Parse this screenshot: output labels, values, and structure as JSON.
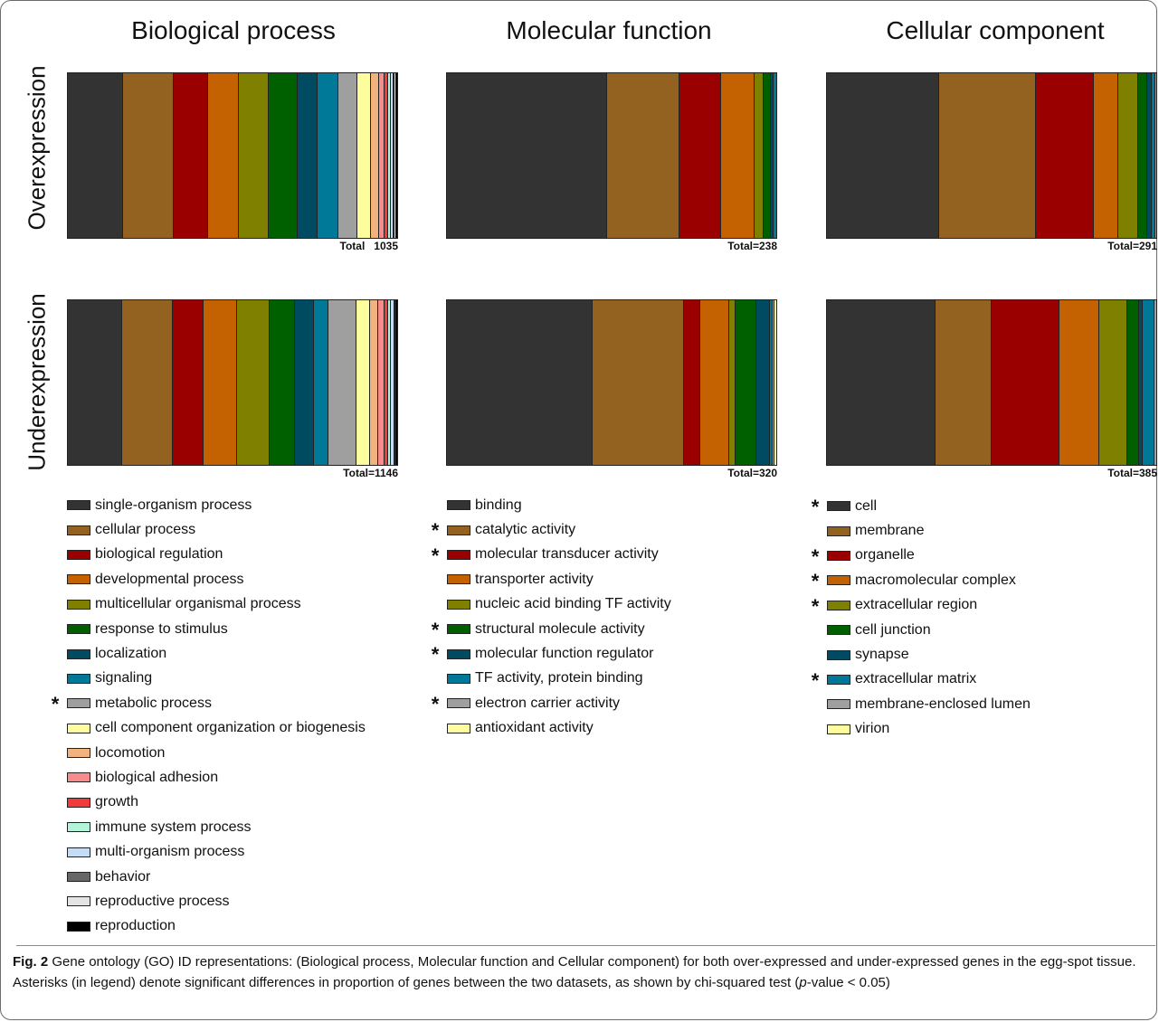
{
  "columns": [
    "Biological process",
    "Molecular function",
    "Cellular component"
  ],
  "rows": [
    "Overexpression",
    "Underexpression"
  ],
  "caption": {
    "label": "Fig. 2",
    "text_before": " Gene ontology (GO) ID representations: (Biological process, Molecular function and Cellular component) for both over-expressed and under-expressed genes in the egg-spot tissue. Asterisks (in legend) denote significant differences in proportion of genes between the two datasets, as shown by chi-squared test (",
    "p_italic": "p",
    "text_after": "-value < 0.05)"
  },
  "chart_data": [
    {
      "type": "bar",
      "stacked": true,
      "normalized": true,
      "title": "Biological process",
      "categories": [
        "Overexpression",
        "Underexpression"
      ],
      "totals": [
        "Total   1035",
        "Total=1146"
      ],
      "series": [
        {
          "name": "single-organism process",
          "color": "#333333",
          "significant": false,
          "values": [
            0.169,
            0.166
          ]
        },
        {
          "name": "cellular process",
          "color": "#936120",
          "significant": false,
          "values": [
            0.153,
            0.153
          ]
        },
        {
          "name": "biological regulation",
          "color": "#9b0000",
          "significant": false,
          "values": [
            0.104,
            0.093
          ]
        },
        {
          "name": "developmental process",
          "color": "#c46100",
          "significant": false,
          "values": [
            0.096,
            0.101
          ]
        },
        {
          "name": "multicellular organismal process",
          "color": "#7f7f00",
          "significant": false,
          "values": [
            0.091,
            0.101
          ]
        },
        {
          "name": "response to stimulus",
          "color": "#006000",
          "significant": false,
          "values": [
            0.086,
            0.077
          ]
        },
        {
          "name": "localization",
          "color": "#004a62",
          "significant": false,
          "values": [
            0.061,
            0.058
          ]
        },
        {
          "name": "signaling",
          "color": "#007898",
          "significant": false,
          "values": [
            0.063,
            0.043
          ]
        },
        {
          "name": "metabolic process",
          "color": "#9f9f9f",
          "significant": true,
          "values": [
            0.058,
            0.085
          ]
        },
        {
          "name": "cell component organization or biogenesis",
          "color": "#fdfd9e",
          "significant": false,
          "values": [
            0.042,
            0.042
          ]
        },
        {
          "name": "locomotion",
          "color": "#f2b27e",
          "significant": false,
          "values": [
            0.024,
            0.024
          ]
        },
        {
          "name": "biological adhesion",
          "color": "#f88b8b",
          "significant": false,
          "values": [
            0.018,
            0.018
          ]
        },
        {
          "name": "growth",
          "color": "#f13a3a",
          "significant": false,
          "values": [
            0.012,
            0.012
          ]
        },
        {
          "name": "immune system process",
          "color": "#b3f4d9",
          "significant": false,
          "values": [
            0.008,
            0.008
          ]
        },
        {
          "name": "multi-organism process",
          "color": "#c6dcf5",
          "significant": false,
          "values": [
            0.006,
            0.012
          ]
        },
        {
          "name": "behavior",
          "color": "#676767",
          "significant": false,
          "values": [
            0.005,
            0.002
          ]
        },
        {
          "name": "reproductive process",
          "color": "#e4e4e4",
          "significant": false,
          "values": [
            0.004,
            0.003
          ]
        },
        {
          "name": "reproduction",
          "color": "#000000",
          "significant": false,
          "values": [
            0.003,
            0.002
          ]
        }
      ]
    },
    {
      "type": "bar",
      "stacked": true,
      "normalized": true,
      "title": "Molecular function",
      "categories": [
        "Overexpression",
        "Underexpression"
      ],
      "totals": [
        "Total=238",
        "Total=320"
      ],
      "series": [
        {
          "name": "binding",
          "color": "#333333",
          "significant": false,
          "values": [
            0.486,
            0.443
          ]
        },
        {
          "name": "catalytic activity",
          "color": "#936120",
          "significant": true,
          "values": [
            0.219,
            0.277
          ]
        },
        {
          "name": "molecular transducer activity",
          "color": "#9b0000",
          "significant": true,
          "values": [
            0.128,
            0.048
          ]
        },
        {
          "name": "transporter activity",
          "color": "#c46100",
          "significant": false,
          "values": [
            0.101,
            0.088
          ]
        },
        {
          "name": "nucleic acid binding TF activity",
          "color": "#7f7f00",
          "significant": false,
          "values": [
            0.028,
            0.021
          ]
        },
        {
          "name": "structural molecule activity",
          "color": "#006000",
          "significant": true,
          "values": [
            0.022,
            0.062
          ]
        },
        {
          "name": "molecular function regulator",
          "color": "#004a62",
          "significant": true,
          "values": [
            0.008,
            0.043
          ]
        },
        {
          "name": "TF activity, protein binding",
          "color": "#007898",
          "significant": false,
          "values": [
            0.008,
            0.006
          ]
        },
        {
          "name": "electron carrier activity",
          "color": "#9f9f9f",
          "significant": true,
          "values": [
            0.0,
            0.006
          ]
        },
        {
          "name": "antioxidant activity",
          "color": "#fdfd9e",
          "significant": false,
          "values": [
            0.0,
            0.006
          ]
        }
      ]
    },
    {
      "type": "bar",
      "stacked": true,
      "normalized": true,
      "title": "Cellular component",
      "categories": [
        "Overexpression",
        "Underexpression"
      ],
      "totals": [
        "Total=291",
        "Total=385"
      ],
      "series": [
        {
          "name": "cell",
          "color": "#333333",
          "significant": true,
          "values": [
            0.34,
            0.33
          ]
        },
        {
          "name": "membrane",
          "color": "#936120",
          "significant": false,
          "values": [
            0.296,
            0.169
          ]
        },
        {
          "name": "organelle",
          "color": "#9b0000",
          "significant": true,
          "values": [
            0.175,
            0.206
          ]
        },
        {
          "name": "macromolecular complex",
          "color": "#c46100",
          "significant": true,
          "values": [
            0.073,
            0.121
          ]
        },
        {
          "name": "extracellular region",
          "color": "#7f7f00",
          "significant": true,
          "values": [
            0.062,
            0.087
          ]
        },
        {
          "name": "cell junction",
          "color": "#006000",
          "significant": false,
          "values": [
            0.026,
            0.035
          ]
        },
        {
          "name": "synapse",
          "color": "#004a62",
          "significant": false,
          "values": [
            0.015,
            0.011
          ]
        },
        {
          "name": "extracellular matrix",
          "color": "#007898",
          "significant": true,
          "values": [
            0.01,
            0.035
          ]
        },
        {
          "name": "membrane-enclosed lumen",
          "color": "#9f9f9f",
          "significant": false,
          "values": [
            0.003,
            0.006
          ]
        },
        {
          "name": "virion",
          "color": "#fdfd9e",
          "significant": false,
          "values": [
            0.0,
            0.0
          ]
        }
      ]
    }
  ]
}
